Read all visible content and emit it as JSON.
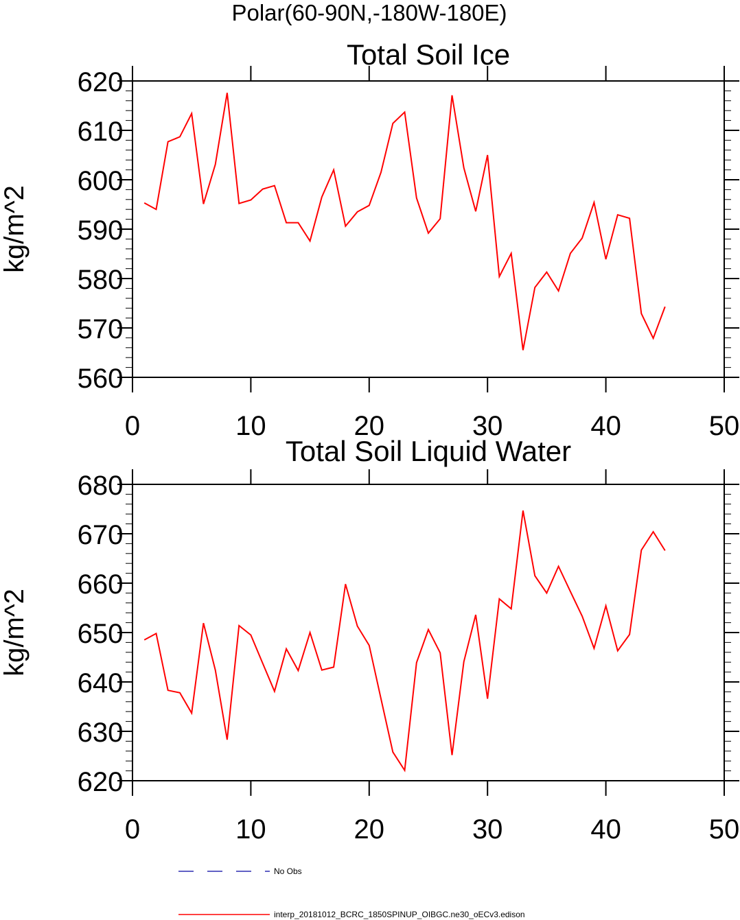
{
  "figure_title": "Polar(60-90N,-180W-180E)",
  "legend": [
    {
      "label": "No Obs",
      "style": "dashed",
      "color": "#0000a0"
    },
    {
      "label": "interp_20181012_BCRC_1850SPINUP_OIBGC.ne30_oECv3.edison",
      "style": "solid",
      "color": "#ff0000"
    }
  ],
  "chart_data": [
    {
      "type": "line",
      "title": "Total Soil Ice",
      "xlabel": "",
      "ylabel": "kg/m^2",
      "xlim": [
        0,
        50
      ],
      "ylim": [
        560,
        620
      ],
      "xticks": [
        0,
        10,
        20,
        30,
        40,
        50
      ],
      "yticks": [
        560,
        570,
        580,
        590,
        600,
        610,
        620
      ],
      "xtick_labels": [
        "0",
        "10",
        "20",
        "30",
        "40",
        "50"
      ],
      "ytick_labels": [
        "560",
        "570",
        "580",
        "590",
        "600",
        "610",
        "620"
      ],
      "grid": false,
      "series": [
        {
          "color": "#ff0000",
          "x": [
            1,
            2,
            3,
            4,
            5,
            6,
            7,
            8,
            9,
            10,
            11,
            12,
            13,
            14,
            15,
            16,
            17,
            18,
            19,
            20,
            21,
            22,
            23,
            24,
            25,
            26,
            27,
            28,
            29,
            30,
            31,
            32,
            33,
            34,
            35,
            36,
            37,
            38,
            39,
            40,
            41,
            42,
            43,
            44,
            45
          ],
          "values": [
            595.3,
            594.0,
            607.7,
            608.7,
            613.4,
            595.1,
            603.1,
            617.6,
            595.2,
            595.9,
            598.1,
            598.8,
            591.3,
            591.3,
            587.6,
            596.5,
            602.0,
            590.6,
            593.5,
            594.8,
            601.5,
            611.4,
            613.7,
            596.3,
            589.2,
            592.1,
            617.1,
            602.4,
            593.6,
            605.0,
            580.4,
            585.1,
            565.5,
            578.2,
            581.3,
            577.5,
            585.1,
            588.2,
            595.4,
            583.9,
            592.9,
            592.2,
            572.9,
            567.9,
            574.3
          ]
        }
      ]
    },
    {
      "type": "line",
      "title": "Total Soil Liquid Water",
      "xlabel": "",
      "ylabel": "kg/m^2",
      "xlim": [
        0,
        50
      ],
      "ylim": [
        620,
        680
      ],
      "xticks": [
        0,
        10,
        20,
        30,
        40,
        50
      ],
      "yticks": [
        620,
        630,
        640,
        650,
        660,
        670,
        680
      ],
      "xtick_labels": [
        "0",
        "10",
        "20",
        "30",
        "40",
        "50"
      ],
      "ytick_labels": [
        "620",
        "630",
        "640",
        "650",
        "660",
        "670",
        "680"
      ],
      "grid": false,
      "series": [
        {
          "color": "#ff0000",
          "x": [
            1,
            2,
            3,
            4,
            5,
            6,
            7,
            8,
            9,
            10,
            11,
            12,
            13,
            14,
            15,
            16,
            17,
            18,
            19,
            20,
            21,
            22,
            23,
            24,
            25,
            26,
            27,
            28,
            29,
            30,
            31,
            32,
            33,
            34,
            35,
            36,
            37,
            38,
            39,
            40,
            41,
            42,
            43,
            44,
            45
          ],
          "values": [
            648.5,
            649.8,
            638.3,
            637.8,
            633.7,
            651.9,
            642.4,
            628.3,
            651.4,
            649.5,
            643.8,
            638.1,
            646.7,
            642.3,
            650.0,
            642.4,
            643.0,
            659.8,
            651.3,
            647.4,
            636.6,
            625.8,
            622.1,
            643.9,
            650.6,
            645.9,
            625.2,
            644.1,
            653.6,
            636.6,
            656.8,
            654.8,
            674.7,
            661.5,
            658.0,
            663.4,
            658.3,
            653.3,
            646.8,
            655.4,
            646.3,
            649.6,
            666.7,
            670.4,
            666.6
          ]
        }
      ]
    }
  ]
}
